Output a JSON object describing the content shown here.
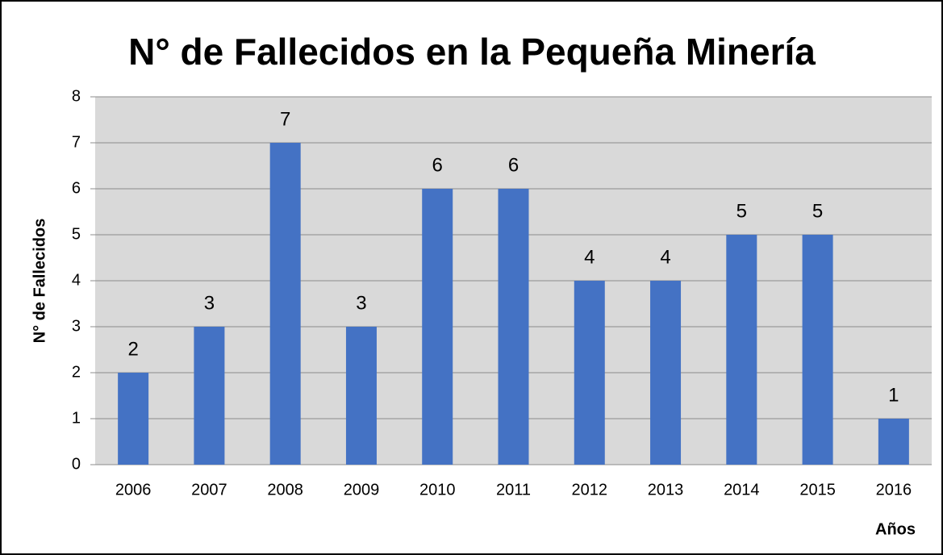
{
  "chart_data": {
    "type": "bar",
    "title": "N° de Fallecidos en la Pequeña Minería",
    "x_label": "Años",
    "y_label": "N° de Fallecidos",
    "categories": [
      "2006",
      "2007",
      "2008",
      "2009",
      "2010",
      "2011",
      "2012",
      "2013",
      "2014",
      "2015",
      "2016"
    ],
    "values": [
      2,
      3,
      7,
      3,
      6,
      6,
      4,
      4,
      5,
      5,
      1
    ],
    "color": "#4472c4",
    "plot_background": "#d9d9d9",
    "ylim": [
      0,
      8
    ],
    "yticks": [
      0,
      1,
      2,
      3,
      4,
      5,
      6,
      7,
      8
    ],
    "grid": true,
    "data_labels": true
  }
}
